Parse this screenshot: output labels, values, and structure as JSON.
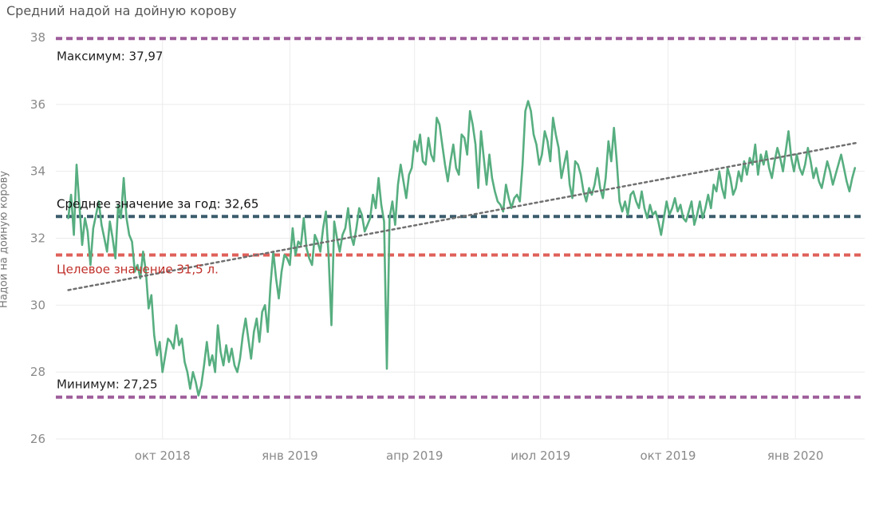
{
  "chart_data": {
    "type": "line",
    "title": "Средний надой на дойную корову",
    "ylabel": "Надой на дойную корову",
    "xlabel": "",
    "ylim": [
      26,
      38
    ],
    "yticks": [
      "26",
      "28",
      "30",
      "32",
      "34",
      "36",
      "38"
    ],
    "xlim": [
      "2018-07-16",
      "2020-02-20"
    ],
    "xticks": [
      {
        "date": "2018-10-01",
        "label": "окт 2018"
      },
      {
        "date": "2019-01-01",
        "label": "янв 2019"
      },
      {
        "date": "2019-04-01",
        "label": "апр 2019"
      },
      {
        "date": "2019-07-01",
        "label": "июл 2019"
      },
      {
        "date": "2019-10-01",
        "label": "окт 2019"
      },
      {
        "date": "2020-01-01",
        "label": "янв 2020"
      }
    ],
    "grid": true,
    "series": [
      {
        "color": "#57ae80",
        "x": [
          "2018-07-25",
          "2018-07-27",
          "2018-07-29",
          "2018-07-31",
          "2018-08-02",
          "2018-08-04",
          "2018-08-06",
          "2018-08-08",
          "2018-08-10",
          "2018-08-12",
          "2018-08-14",
          "2018-08-16",
          "2018-08-18",
          "2018-08-20",
          "2018-08-22",
          "2018-08-24",
          "2018-08-26",
          "2018-08-28",
          "2018-08-30",
          "2018-09-01",
          "2018-09-03",
          "2018-09-05",
          "2018-09-07",
          "2018-09-09",
          "2018-09-11",
          "2018-09-13",
          "2018-09-15",
          "2018-09-17",
          "2018-09-19",
          "2018-09-21",
          "2018-09-23",
          "2018-09-25",
          "2018-09-27",
          "2018-09-29",
          "2018-10-01",
          "2018-10-03",
          "2018-10-05",
          "2018-10-07",
          "2018-10-09",
          "2018-10-11",
          "2018-10-13",
          "2018-10-15",
          "2018-10-17",
          "2018-10-19",
          "2018-10-21",
          "2018-10-23",
          "2018-10-25",
          "2018-10-27",
          "2018-10-29",
          "2018-10-31",
          "2018-11-02",
          "2018-11-04",
          "2018-11-06",
          "2018-11-08",
          "2018-11-10",
          "2018-11-12",
          "2018-11-14",
          "2018-11-16",
          "2018-11-18",
          "2018-11-20",
          "2018-11-22",
          "2018-11-24",
          "2018-11-26",
          "2018-11-28",
          "2018-11-30",
          "2018-12-02",
          "2018-12-04",
          "2018-12-06",
          "2018-12-08",
          "2018-12-10",
          "2018-12-12",
          "2018-12-14",
          "2018-12-16",
          "2018-12-18",
          "2018-12-20",
          "2018-12-22",
          "2018-12-24",
          "2018-12-26",
          "2018-12-28",
          "2018-12-30",
          "2019-01-01",
          "2019-01-03",
          "2019-01-05",
          "2019-01-07",
          "2019-01-09",
          "2019-01-11",
          "2019-01-13",
          "2019-01-15",
          "2019-01-17",
          "2019-01-19",
          "2019-01-21",
          "2019-01-23",
          "2019-01-25",
          "2019-01-27",
          "2019-01-29",
          "2019-01-31",
          "2019-02-02",
          "2019-02-04",
          "2019-02-06",
          "2019-02-08",
          "2019-02-10",
          "2019-02-12",
          "2019-02-14",
          "2019-02-16",
          "2019-02-18",
          "2019-02-20",
          "2019-02-22",
          "2019-02-24",
          "2019-02-26",
          "2019-02-28",
          "2019-03-02",
          "2019-03-04",
          "2019-03-06",
          "2019-03-08",
          "2019-03-10",
          "2019-03-12",
          "2019-03-14",
          "2019-03-16",
          "2019-03-18",
          "2019-03-20",
          "2019-03-22",
          "2019-03-24",
          "2019-03-26",
          "2019-03-28",
          "2019-03-30",
          "2019-04-01",
          "2019-04-03",
          "2019-04-05",
          "2019-04-07",
          "2019-04-09",
          "2019-04-11",
          "2019-04-13",
          "2019-04-15",
          "2019-04-17",
          "2019-04-19",
          "2019-04-21",
          "2019-04-23",
          "2019-04-25",
          "2019-04-27",
          "2019-04-29",
          "2019-05-01",
          "2019-05-03",
          "2019-05-05",
          "2019-05-07",
          "2019-05-09",
          "2019-05-11",
          "2019-05-13",
          "2019-05-15",
          "2019-05-17",
          "2019-05-19",
          "2019-05-21",
          "2019-05-23",
          "2019-05-25",
          "2019-05-27",
          "2019-05-29",
          "2019-05-31",
          "2019-06-02",
          "2019-06-04",
          "2019-06-06",
          "2019-06-08",
          "2019-06-10",
          "2019-06-12",
          "2019-06-14",
          "2019-06-16",
          "2019-06-18",
          "2019-06-20",
          "2019-06-22",
          "2019-06-24",
          "2019-06-26",
          "2019-06-28",
          "2019-06-30",
          "2019-07-02",
          "2019-07-04",
          "2019-07-06",
          "2019-07-08",
          "2019-07-10",
          "2019-07-12",
          "2019-07-14",
          "2019-07-16",
          "2019-07-18",
          "2019-07-20",
          "2019-07-22",
          "2019-07-24",
          "2019-07-26",
          "2019-07-28",
          "2019-07-30",
          "2019-08-01",
          "2019-08-03",
          "2019-08-05",
          "2019-08-07",
          "2019-08-09",
          "2019-08-11",
          "2019-08-13",
          "2019-08-15",
          "2019-08-17",
          "2019-08-19",
          "2019-08-21",
          "2019-08-23",
          "2019-08-25",
          "2019-08-27",
          "2019-08-29",
          "2019-08-31",
          "2019-09-02",
          "2019-09-04",
          "2019-09-06",
          "2019-09-08",
          "2019-09-10",
          "2019-09-12",
          "2019-09-14",
          "2019-09-16",
          "2019-09-18",
          "2019-09-20",
          "2019-09-22",
          "2019-09-24",
          "2019-09-26",
          "2019-09-28",
          "2019-09-30",
          "2019-10-02",
          "2019-10-04",
          "2019-10-06",
          "2019-10-08",
          "2019-10-10",
          "2019-10-12",
          "2019-10-14",
          "2019-10-16",
          "2019-10-18",
          "2019-10-20",
          "2019-10-22",
          "2019-10-24",
          "2019-10-26",
          "2019-10-28",
          "2019-10-30",
          "2019-11-01",
          "2019-11-03",
          "2019-11-05",
          "2019-11-07",
          "2019-11-09",
          "2019-11-11",
          "2019-11-13",
          "2019-11-15",
          "2019-11-17",
          "2019-11-19",
          "2019-11-21",
          "2019-11-23",
          "2019-11-25",
          "2019-11-27",
          "2019-11-29",
          "2019-12-01",
          "2019-12-03",
          "2019-12-05",
          "2019-12-07",
          "2019-12-09",
          "2019-12-11",
          "2019-12-13",
          "2019-12-15",
          "2019-12-17",
          "2019-12-19",
          "2019-12-21",
          "2019-12-23",
          "2019-12-25",
          "2019-12-27",
          "2019-12-29",
          "2019-12-31",
          "2020-01-02",
          "2020-01-04",
          "2020-01-06",
          "2020-01-08",
          "2020-01-10",
          "2020-01-12",
          "2020-01-14",
          "2020-01-16",
          "2020-01-18",
          "2020-01-20",
          "2020-01-22",
          "2020-01-24",
          "2020-01-26",
          "2020-01-28",
          "2020-01-30",
          "2020-02-01",
          "2020-02-03",
          "2020-02-05",
          "2020-02-07",
          "2020-02-09",
          "2020-02-11",
          "2020-02-13"
        ],
        "values": [
          32.6,
          33.3,
          32.1,
          34.2,
          33.0,
          31.8,
          32.6,
          32.2,
          31.2,
          32.3,
          32.7,
          33.1,
          32.4,
          32.0,
          31.6,
          32.5,
          32.0,
          31.4,
          33.0,
          32.6,
          33.8,
          32.6,
          32.1,
          31.9,
          31.0,
          31.2,
          30.8,
          31.6,
          31.0,
          29.9,
          30.3,
          29.1,
          28.5,
          28.9,
          28.0,
          28.5,
          29.0,
          28.9,
          28.7,
          29.4,
          28.8,
          29.0,
          28.3,
          28.0,
          27.5,
          28.0,
          27.7,
          27.3,
          27.6,
          28.2,
          28.9,
          28.2,
          28.5,
          28.0,
          29.4,
          28.6,
          28.2,
          28.8,
          28.3,
          28.7,
          28.2,
          28.0,
          28.4,
          29.1,
          29.6,
          29.0,
          28.4,
          29.2,
          29.6,
          28.9,
          29.8,
          30.0,
          29.2,
          30.6,
          31.6,
          30.8,
          30.2,
          31.0,
          31.5,
          31.4,
          31.2,
          32.3,
          31.5,
          31.9,
          31.8,
          32.6,
          31.7,
          31.4,
          31.2,
          32.1,
          31.9,
          31.6,
          32.3,
          32.8,
          31.4,
          29.4,
          32.5,
          32.0,
          31.6,
          32.1,
          32.3,
          32.9,
          32.1,
          31.8,
          32.3,
          32.9,
          32.7,
          32.2,
          32.4,
          32.6,
          33.3,
          32.9,
          33.8,
          33.0,
          32.5,
          28.1,
          32.6,
          33.1,
          32.4,
          33.6,
          34.2,
          33.7,
          33.2,
          33.9,
          34.1,
          34.9,
          34.6,
          35.1,
          34.3,
          34.2,
          35.0,
          34.5,
          34.3,
          35.6,
          35.4,
          34.8,
          34.2,
          33.7,
          34.3,
          34.8,
          34.1,
          33.9,
          35.1,
          35.0,
          34.5,
          35.8,
          35.4,
          34.8,
          33.5,
          35.2,
          34.4,
          33.6,
          34.5,
          33.8,
          33.4,
          33.1,
          33.0,
          32.8,
          33.6,
          33.2,
          32.9,
          33.2,
          33.3,
          33.1,
          34.2,
          35.8,
          36.1,
          35.8,
          35.1,
          34.8,
          34.2,
          34.5,
          35.2,
          34.9,
          34.3,
          35.6,
          35.1,
          34.7,
          33.8,
          34.2,
          34.6,
          33.6,
          33.2,
          34.3,
          34.2,
          33.9,
          33.4,
          33.1,
          33.5,
          33.3,
          33.6,
          34.1,
          33.5,
          33.2,
          33.8,
          34.9,
          34.3,
          35.3,
          34.3,
          33.1,
          32.8,
          33.1,
          32.7,
          33.3,
          33.4,
          33.1,
          32.9,
          33.4,
          32.9,
          32.6,
          33.0,
          32.7,
          32.8,
          32.5,
          32.1,
          32.6,
          33.1,
          32.7,
          32.9,
          33.2,
          32.8,
          33.0,
          32.6,
          32.5,
          32.8,
          33.1,
          32.4,
          32.7,
          33.1,
          32.6,
          32.9,
          33.3,
          32.9,
          33.6,
          33.4,
          34.0,
          33.5,
          33.2,
          34.1,
          33.8,
          33.3,
          33.5,
          34.0,
          33.7,
          34.3,
          33.9,
          34.4,
          34.2,
          34.8,
          33.9,
          34.5,
          34.2,
          34.6,
          34.1,
          33.8,
          34.3,
          34.7,
          34.4,
          34.0,
          34.6,
          35.2,
          34.4,
          34.0,
          34.5,
          34.1,
          33.9,
          34.2,
          34.7,
          34.3,
          33.8,
          34.1,
          33.7,
          33.5,
          33.9,
          34.3,
          34.0,
          33.6,
          33.9,
          34.2,
          34.5,
          34.1,
          33.7,
          33.4,
          33.8,
          34.1
        ]
      }
    ],
    "trend": {
      "color": "#707070",
      "start": {
        "x": "2018-07-25",
        "y": 30.45
      },
      "end": {
        "x": "2020-02-14",
        "y": 34.85
      }
    },
    "reference_lines": [
      {
        "value": 37.97,
        "label": "Максимум: 37,97",
        "color": "#9e5d9a",
        "label_color": "#222222"
      },
      {
        "value": 32.65,
        "label": "Среднее значение за год: 32,65",
        "color": "#3b5c6c",
        "label_color": "#111111"
      },
      {
        "value": 31.5,
        "label": "Целевое значение 31,5 л.",
        "color": "#e0605a",
        "label_color": "#c0302a"
      },
      {
        "value": 27.25,
        "label": "Минимум: 27,25",
        "color": "#9e5d9a",
        "label_color": "#222222"
      }
    ]
  }
}
